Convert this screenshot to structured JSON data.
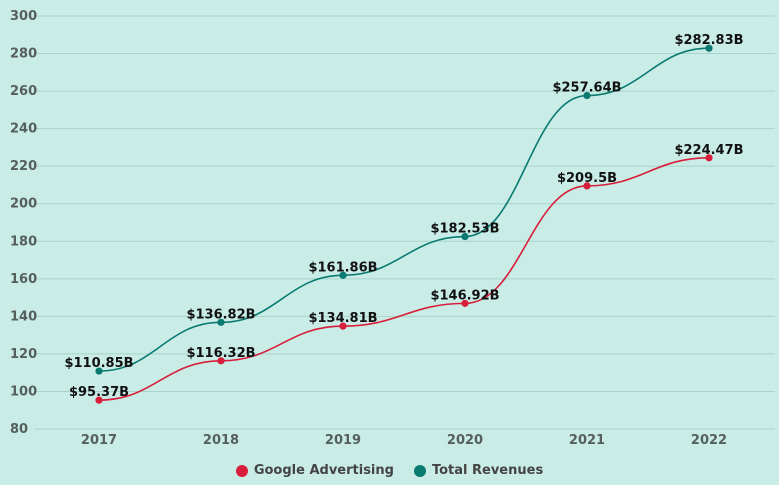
{
  "chart_data": {
    "type": "line",
    "categories": [
      "2017",
      "2018",
      "2019",
      "2020",
      "2021",
      "2022"
    ],
    "yticks": [
      80,
      100,
      120,
      140,
      160,
      180,
      200,
      220,
      240,
      260,
      280,
      300
    ],
    "ylim": [
      80,
      300
    ],
    "grid": true,
    "legend_position": "bottom",
    "series": [
      {
        "name": "Google Advertising",
        "color": "#d81e3a",
        "values": [
          95.37,
          116.32,
          134.81,
          146.92,
          209.5,
          224.47
        ],
        "labels": [
          "$95.37B",
          "$116.32B",
          "$134.81B",
          "$146.92B",
          "$209.5B",
          "$224.47B"
        ]
      },
      {
        "name": "Total Revenues",
        "color": "#0a7a70",
        "values": [
          110.85,
          136.82,
          161.86,
          182.53,
          257.64,
          282.83
        ],
        "labels": [
          "$110.85B",
          "$136.82B",
          "$161.86B",
          "$182.53B",
          "$257.64B",
          "$282.83B"
        ]
      }
    ]
  }
}
